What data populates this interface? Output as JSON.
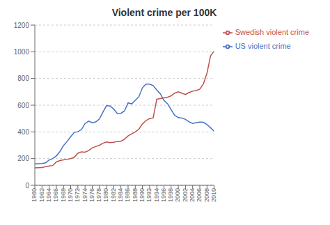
{
  "chart_data": {
    "type": "line",
    "title": "Violent crime per 100K",
    "x": [
      1960,
      1961,
      1962,
      1963,
      1964,
      1965,
      1966,
      1967,
      1968,
      1969,
      1970,
      1971,
      1972,
      1973,
      1974,
      1975,
      1976,
      1977,
      1978,
      1979,
      1980,
      1981,
      1982,
      1983,
      1984,
      1985,
      1986,
      1987,
      1988,
      1989,
      1990,
      1991,
      1992,
      1993,
      1994,
      1995,
      1996,
      1997,
      1998,
      1999,
      2000,
      2001,
      2002,
      2003,
      2004,
      2005,
      2006,
      2007,
      2008,
      2009,
      2010
    ],
    "series": [
      {
        "name": "US violent crime",
        "color": "#4472C4",
        "values": [
          160,
          162,
          163,
          168,
          190,
          200,
          220,
          253,
          298,
          328,
          364,
          396,
          401,
          417,
          462,
          481,
          468,
          475,
          497,
          548,
          597,
          594,
          571,
          537,
          539,
          557,
          617,
          610,
          637,
          663,
          730,
          758,
          758,
          747,
          714,
          685,
          636,
          611,
          567,
          523,
          507,
          504,
          494,
          475,
          463,
          469,
          474,
          472,
          455,
          431,
          404
        ]
      },
      {
        "name": "Swedish violent crime",
        "color": "#C0504D",
        "values": [
          130,
          132,
          133,
          140,
          145,
          148,
          175,
          185,
          190,
          195,
          200,
          210,
          240,
          250,
          248,
          260,
          280,
          290,
          300,
          315,
          325,
          320,
          322,
          328,
          330,
          345,
          370,
          385,
          400,
          420,
          460,
          485,
          500,
          505,
          645,
          650,
          655,
          660,
          670,
          690,
          700,
          690,
          680,
          695,
          705,
          710,
          720,
          760,
          840,
          970,
          1005
        ]
      }
    ],
    "xlim": [
      1960,
      2010
    ],
    "xticks": [
      1960,
      1962,
      1964,
      1966,
      1968,
      1970,
      1972,
      1974,
      1976,
      1978,
      1980,
      1982,
      1984,
      1986,
      1988,
      1990,
      1992,
      1994,
      1996,
      1998,
      2000,
      2002,
      2004,
      2006,
      2008,
      2010
    ],
    "ylim": [
      0,
      1200
    ],
    "yticks": [
      0,
      200,
      400,
      600,
      800,
      1000,
      1200
    ],
    "grid": true,
    "legend": "right"
  }
}
